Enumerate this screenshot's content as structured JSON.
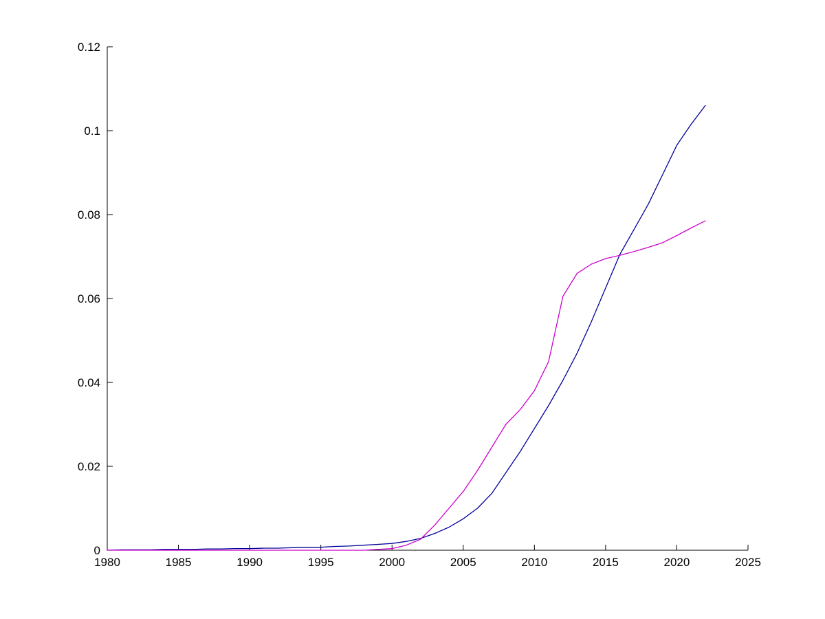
{
  "figure": {
    "background": "#FFFFFF",
    "title": ""
  },
  "chart_data": {
    "type": "line",
    "title": "",
    "subtitle": "",
    "xlabel": "",
    "ylabel": "",
    "xlim": [
      1980,
      2025
    ],
    "ylim": [
      0,
      0.12
    ],
    "grid": false,
    "legend": "none",
    "axis_color": "#000000",
    "tick_label_color": "#000000",
    "x_ticks": [
      {
        "value": 1980,
        "label": "1980"
      },
      {
        "value": 1985,
        "label": "1985"
      },
      {
        "value": 1990,
        "label": "1990"
      },
      {
        "value": 1995,
        "label": "1995"
      },
      {
        "value": 2000,
        "label": "2000"
      },
      {
        "value": 2005,
        "label": "2005"
      },
      {
        "value": 2010,
        "label": "2010"
      },
      {
        "value": 2015,
        "label": "2015"
      },
      {
        "value": 2020,
        "label": "2020"
      },
      {
        "value": 2025,
        "label": "2025"
      }
    ],
    "y_ticks": [
      {
        "value": 0,
        "label": "0"
      },
      {
        "value": 0.02,
        "label": "0.02"
      },
      {
        "value": 0.04,
        "label": "0.04"
      },
      {
        "value": 0.06,
        "label": "0.06"
      },
      {
        "value": 0.08,
        "label": "0.08"
      },
      {
        "value": 0.1,
        "label": "0.1"
      },
      {
        "value": 0.12,
        "label": "0.12"
      }
    ],
    "x": [
      1980,
      1981,
      1982,
      1983,
      1984,
      1985,
      1986,
      1987,
      1988,
      1989,
      1990,
      1991,
      1992,
      1993,
      1994,
      1995,
      1996,
      1997,
      1998,
      1999,
      2000,
      2001,
      2002,
      2003,
      2004,
      2005,
      2006,
      2007,
      2008,
      2009,
      2010,
      2011,
      2012,
      2013,
      2014,
      2015,
      2016,
      2017,
      2018,
      2019,
      2020,
      2021,
      2022
    ],
    "series": [
      {
        "name": "dark-blue",
        "color": "#000099",
        "values": [
          0.0,
          0.0001,
          0.0001,
          0.0001,
          0.0002,
          0.0002,
          0.0002,
          0.0003,
          0.0003,
          0.0004,
          0.0004,
          0.0005,
          0.0005,
          0.0006,
          0.0007,
          0.0007,
          0.0009,
          0.001,
          0.0012,
          0.0014,
          0.0016,
          0.0021,
          0.0028,
          0.004,
          0.0055,
          0.0075,
          0.01,
          0.0135,
          0.0185,
          0.0235,
          0.029,
          0.0345,
          0.0405,
          0.047,
          0.0545,
          0.0625,
          0.0705,
          0.0765,
          0.0825,
          0.0895,
          0.0965,
          0.1015,
          0.106
        ]
      },
      {
        "name": "magenta",
        "color": "#CC00CC",
        "values": [
          0.0,
          0.0,
          0.0,
          0.0,
          0.0,
          0.0,
          0.0,
          0.0,
          0.0,
          0.0,
          0.0,
          0.0,
          0.0,
          0.0,
          0.0,
          0.0,
          0.0,
          0.0,
          0.0,
          0.0002,
          0.0004,
          0.0012,
          0.0026,
          0.006,
          0.01,
          0.014,
          0.019,
          0.0245,
          0.03,
          0.0335,
          0.038,
          0.045,
          0.0605,
          0.066,
          0.0682,
          0.0695,
          0.0703,
          0.0712,
          0.0722,
          0.0733,
          0.075,
          0.0768,
          0.0785
        ]
      }
    ]
  }
}
